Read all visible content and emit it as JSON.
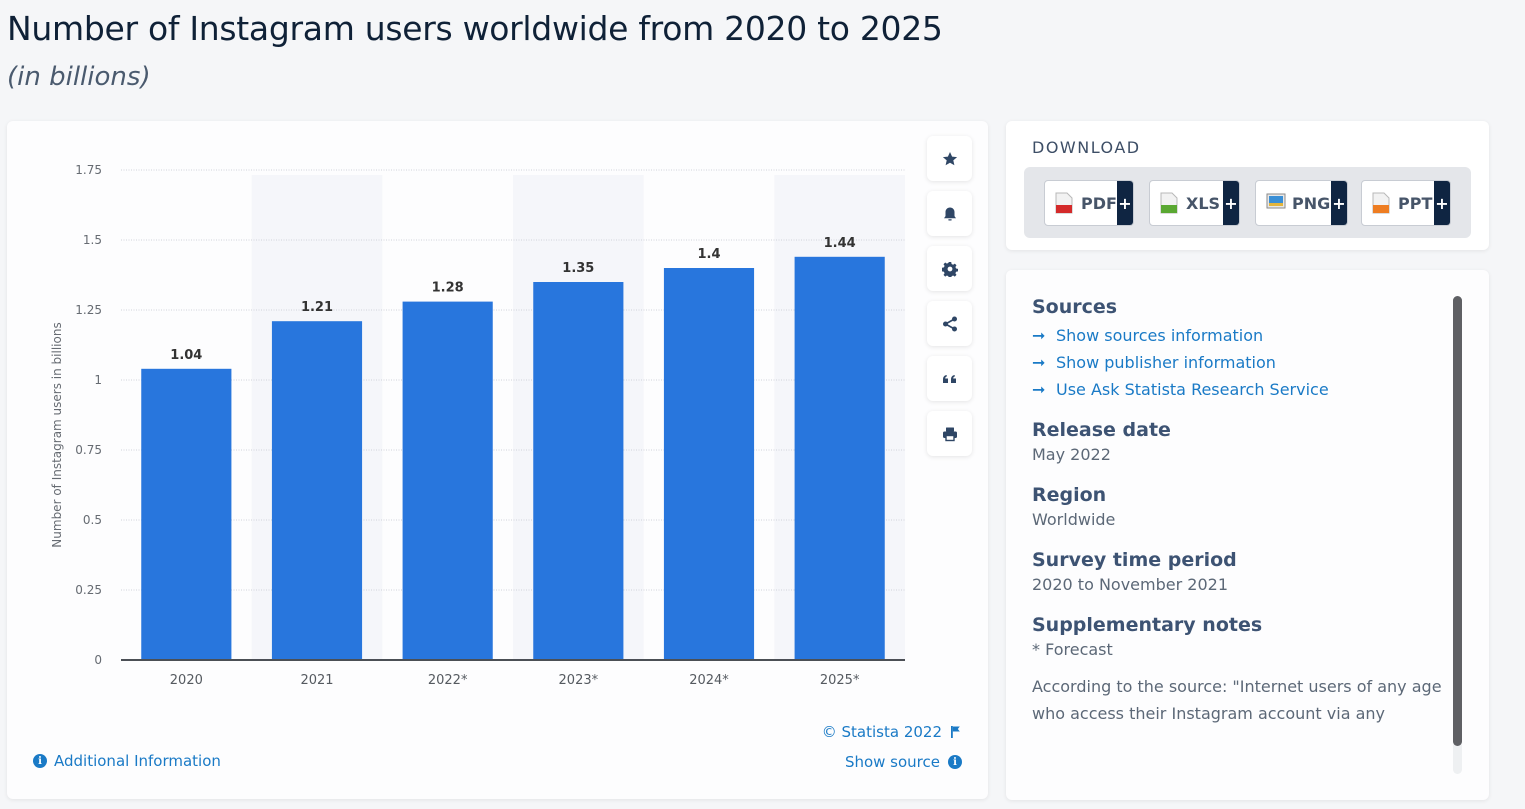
{
  "header": {
    "title": "Number of Instagram users worldwide from 2020 to 2025",
    "subtitle": "(in billions)"
  },
  "chart_data": {
    "type": "bar",
    "title": "Number of Instagram users worldwide from 2020 to 2025",
    "subtitle": "(in billions)",
    "categories": [
      "2020",
      "2021",
      "2022*",
      "2023*",
      "2024*",
      "2025*"
    ],
    "values": [
      1.04,
      1.21,
      1.28,
      1.35,
      1.4,
      1.44
    ],
    "value_labels": [
      "1.04",
      "1.21",
      "1.28",
      "1.35",
      "1.4",
      "1.44"
    ],
    "xlabel": "",
    "ylabel": "Number of Instagram users in billions",
    "ylim": [
      0,
      1.75
    ],
    "yticks": [
      0,
      0.25,
      0.5,
      0.75,
      1,
      1.25,
      1.5,
      1.75
    ],
    "ytick_labels": [
      "0",
      "0.25",
      "0.5",
      "0.75",
      "1",
      "1.25",
      "1.5",
      "1.75"
    ],
    "grid": true,
    "bar_color": "#2876dd",
    "legend": "none"
  },
  "toolbar": {
    "buttons": [
      {
        "name": "favorite",
        "icon": "star-icon"
      },
      {
        "name": "notification",
        "icon": "bell-icon"
      },
      {
        "name": "settings",
        "icon": "gear-icon"
      },
      {
        "name": "share",
        "icon": "share-icon"
      },
      {
        "name": "cite",
        "icon": "quote-icon"
      },
      {
        "name": "print",
        "icon": "print-icon"
      }
    ]
  },
  "footer": {
    "additional_info": "Additional Information",
    "copyright": "© Statista 2022",
    "show_source": "Show source"
  },
  "download": {
    "title": "DOWNLOAD",
    "formats": [
      {
        "label": "PDF",
        "icon": "pdf-file-icon",
        "color": "#d42a2a"
      },
      {
        "label": "XLS",
        "icon": "xls-file-icon",
        "color": "#5aa832"
      },
      {
        "label": "PNG",
        "icon": "png-file-icon",
        "color": "#3a8fd6"
      },
      {
        "label": "PPT",
        "icon": "ppt-file-icon",
        "color": "#ee7d22"
      }
    ],
    "plus": "+"
  },
  "meta": {
    "sources_heading": "Sources",
    "links": [
      "Show sources information",
      "Show publisher information",
      "Use Ask Statista Research Service"
    ],
    "release_heading": "Release date",
    "release_value": "May 2022",
    "region_heading": "Region",
    "region_value": "Worldwide",
    "period_heading": "Survey time period",
    "period_value": "2020 to November 2021",
    "notes_heading": "Supplementary notes",
    "notes_value": "* Forecast",
    "notes_paragraph": "According to the source: \"Internet users of any age who access their Instagram account via any device at least once per month.\""
  }
}
